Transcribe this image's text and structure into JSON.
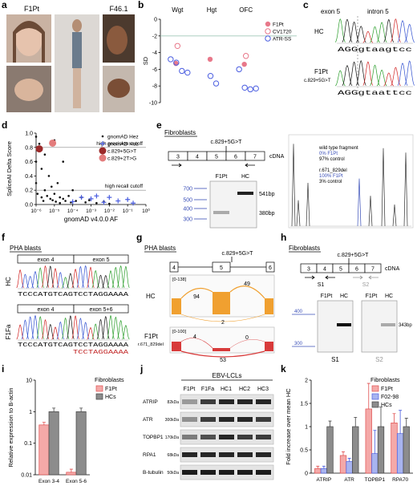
{
  "panel_labels": [
    "a",
    "b",
    "c",
    "d",
    "e",
    "f",
    "g",
    "h",
    "i",
    "j",
    "k"
  ],
  "panels": {
    "a": {
      "subjects": [
        "F1Pt",
        "F46.1"
      ]
    },
    "c": {
      "exons": [
        "exon 5",
        "intron 5"
      ],
      "rows": [
        {
          "name": "HC",
          "sequence": "AGGgtaagtcc"
        },
        {
          "name": "F1Pt",
          "variant": "c.829+5G>T",
          "sequence": "AGGgtaattcc"
        }
      ]
    },
    "e": {
      "sample": "Fibroblasts",
      "exons": [
        "3",
        "4",
        "5",
        "6",
        "7"
      ],
      "variant": "c.829+5G>T",
      "track": "cDNA",
      "lanes": [
        "F1Pt",
        "HC"
      ],
      "ladder": [
        700,
        500,
        400,
        300
      ],
      "bands": [
        "541bp",
        "380bp"
      ],
      "trace": [
        "wild type fragment",
        "0% F1Pt",
        "97% control",
        "r.671_829del",
        "100% F1Pt",
        "3% control"
      ]
    },
    "f": {
      "sample": "PHA blasts",
      "rows": [
        {
          "name": "HC",
          "exons": [
            "exon 4",
            "exon 5"
          ],
          "sequence": "TCCCATGTCAGTCCTAGGAAAA"
        },
        {
          "name": "F1Fa",
          "exons": [
            "exon 4",
            "exon 5+6"
          ],
          "sequence": "TCCCATGTCAGTCCTAGGAAAA",
          "alt_sequence": "TCCTAGGAAAA"
        }
      ]
    },
    "g": {
      "sample": "PHA blasts",
      "exons": [
        "4",
        "5",
        "6"
      ],
      "variant": "c.829+5G>T",
      "tracks": [
        {
          "range": "[0-138]",
          "name": "HC",
          "junctions": [
            94,
            49,
            2
          ]
        },
        {
          "range": "[0-100]",
          "name": "F1Pt",
          "subname": "r.671_829del",
          "junctions": [
            4,
            0,
            53
          ]
        }
      ]
    },
    "h": {
      "sample": "Fibroblasts",
      "variant": "c.829+5G>T",
      "exons": [
        "3",
        "4",
        "5",
        "6",
        "7"
      ],
      "track": "cDNA",
      "primers": [
        "S1",
        "S2"
      ],
      "lanes": [
        "F1Pt",
        "HC",
        "F1Pt",
        "HC"
      ],
      "ladder": [
        400,
        300
      ],
      "band": "343bp"
    },
    "j": {
      "sample": "EBV-LCLs",
      "lanes": [
        "F1Pt",
        "F1Fa",
        "HC1",
        "HC2",
        "HC3"
      ],
      "proteins": [
        {
          "name": "ATRIP",
          "size": "82kDa"
        },
        {
          "name": "ATR",
          "size": "300kDa"
        },
        {
          "name": "TOPBP1",
          "size": "170kDa"
        },
        {
          "name": "RPA1",
          "size": "68kDa"
        },
        {
          "name": "B-tubulin",
          "size": "50kDa"
        }
      ]
    }
  },
  "chart_data": [
    {
      "type": "scatter",
      "categories": [
        "Wgt",
        "Hgt",
        "OFC"
      ],
      "ylabel": "SD",
      "ylim": [
        -10,
        0
      ],
      "yticks": [
        0,
        -2,
        -4,
        -6,
        -8,
        -10
      ],
      "reference_line": -2,
      "series": [
        {
          "name": "F1Pt",
          "color": "#e8788a",
          "marker": "filled",
          "x": [
            "Wgt",
            "Hgt",
            "OFC"
          ],
          "values": [
            -5.3,
            -4.8,
            -5.4
          ]
        },
        {
          "name": "CV1720",
          "color": "#e8788a",
          "marker": "open",
          "x": [
            "Wgt",
            "OFC"
          ],
          "values": [
            -3.2,
            -4.4
          ]
        },
        {
          "name": "ATR-SS",
          "color": "#4a5de0",
          "marker": "open",
          "x": [
            "Wgt",
            "Wgt",
            "Wgt",
            "Wgt",
            "Hgt",
            "Hgt",
            "OFC",
            "OFC",
            "OFC",
            "OFC"
          ],
          "values": [
            -4.8,
            -5.2,
            -6.2,
            -6.4,
            -6.8,
            -7.7,
            -6.0,
            -8.2,
            -8.4,
            -8.3
          ]
        }
      ]
    },
    {
      "type": "scatter",
      "ylabel": "SpliceAI Delta Score",
      "xlabel": "gnomAD v4.0.0 AF",
      "log_x": true,
      "xlim": [
        1e-06,
        1
      ],
      "xticks": [
        {
          "value": 1e-06,
          "label": "10⁻⁶"
        },
        {
          "value": 1e-05,
          "label": "10⁻⁵"
        },
        {
          "value": 0.0001,
          "label": "10⁻⁴"
        },
        {
          "value": 0.001,
          "label": "10⁻³"
        },
        {
          "value": 0.01,
          "label": "10⁻²"
        },
        {
          "value": 0.1,
          "label": "10⁻¹"
        },
        {
          "value": 1,
          "label": "10⁰"
        }
      ],
      "ylim": [
        0,
        1
      ],
      "yticks": [
        {
          "value": 0,
          "label": "0.0"
        },
        {
          "value": 0.2,
          "label": "0.2"
        },
        {
          "value": 0.4,
          "label": "0.4"
        },
        {
          "value": 0.6,
          "label": "0.6"
        },
        {
          "value": 0.8,
          "label": "0.8"
        },
        {
          "value": 1,
          "label": "1.0"
        }
      ],
      "hlines": [
        {
          "value": 0.8,
          "label": "high precision cutoff"
        },
        {
          "value": 0.2,
          "label": "high recall cutoff"
        }
      ],
      "series": [
        {
          "name": "gnomAD Hez",
          "color": "#111111",
          "marker": "dot",
          "x": [
            1e-06,
            1e-06,
            1e-06,
            1.2e-06,
            1.5e-06,
            2e-06,
            2e-06,
            2.5e-06,
            3e-06,
            3e-06,
            4e-06,
            5e-06,
            6e-06,
            7e-06,
            8e-06,
            1e-05,
            1e-05,
            1.2e-05,
            1.5e-05,
            2e-05,
            2e-05,
            3e-05,
            3e-05,
            4e-05,
            6e-05,
            8e-05,
            0.0001,
            0.00015,
            0.0003,
            0.0005,
            0.0008,
            0.002,
            0.005,
            0.01
          ],
          "values": [
            0.95,
            0.6,
            0.3,
            0.15,
            0.85,
            0.5,
            0.1,
            0.05,
            0.7,
            0.2,
            0.12,
            0.4,
            0.08,
            0.25,
            0.06,
            0.9,
            0.15,
            0.04,
            0.3,
            0.1,
            0.02,
            0.6,
            0.08,
            0.05,
            0.12,
            0.03,
            0.2,
            0.05,
            0.1,
            0.03,
            0.06,
            0.02,
            0.04,
            0.01
          ]
        },
        {
          "name": "gnomAD Hoz",
          "color": "#4a5de0",
          "marker": "plus",
          "x": [
            0.0001,
            0.0003,
            0.001,
            0.002,
            0.005,
            0.01,
            0.03,
            0.1,
            0.2
          ],
          "values": [
            0.04,
            0.1,
            0.08,
            0.12,
            0.03,
            0.1,
            0.05,
            0.07,
            0.02
          ]
        },
        {
          "name": "c.829+5G>T",
          "color": "#9b2a2a",
          "marker": "big",
          "x": [
            1.5e-06
          ],
          "values": [
            0.78
          ]
        },
        {
          "name": "c.829+2T>G",
          "color": "#e37c7c",
          "marker": "big",
          "x": [
            8e-06
          ],
          "values": [
            0.86
          ]
        }
      ]
    },
    {
      "type": "bar",
      "ylabel": "Relative expression to B-actin",
      "log_y": true,
      "ylim": [
        0.01,
        10
      ],
      "yticks": [
        0.01,
        0.1,
        1,
        10
      ],
      "categories": [
        "Exon 3-4",
        "Exon 5-6"
      ],
      "legend_title": "Fibroblasts",
      "series": [
        {
          "name": "F1Pt",
          "color": "#f4a9a8",
          "edge": "#e05050",
          "values": [
            0.38,
            0.012
          ],
          "errors": [
            0.08,
            0.003
          ]
        },
        {
          "name": "HCs",
          "color": "#8c8c8c",
          "edge": "#444444",
          "values": [
            1,
            1
          ],
          "errors": [
            0.3,
            0.3
          ]
        }
      ]
    },
    {
      "type": "bar",
      "ylabel": "Fold increase over mean HC",
      "ylim": [
        0,
        2
      ],
      "yticks": [
        0,
        0.5,
        1,
        1.5,
        2
      ],
      "categories": [
        "ATRIP",
        "ATR",
        "TOPBP1",
        "RPA70"
      ],
      "legend_title": "Fibroblasts",
      "series": [
        {
          "name": "F1Pt",
          "color": "#f4a9a8",
          "edge": "#e05050",
          "values": [
            0.1,
            0.38,
            1.38,
            1.08
          ],
          "errors": [
            0.05,
            0.08,
            0.55,
            0.2
          ]
        },
        {
          "name": "F02-98",
          "color": "#a8b4f0",
          "edge": "#4a5de0",
          "values": [
            0.1,
            0.25,
            0.42,
            0.85
          ],
          "errors": [
            0.05,
            0.07,
            0.5,
            0.5
          ]
        },
        {
          "name": "HCs",
          "color": "#8c8c8c",
          "edge": "#444444",
          "values": [
            1,
            1,
            1,
            1
          ],
          "errors": [
            0.12,
            0.2,
            0.42,
            0.18
          ]
        }
      ]
    }
  ]
}
